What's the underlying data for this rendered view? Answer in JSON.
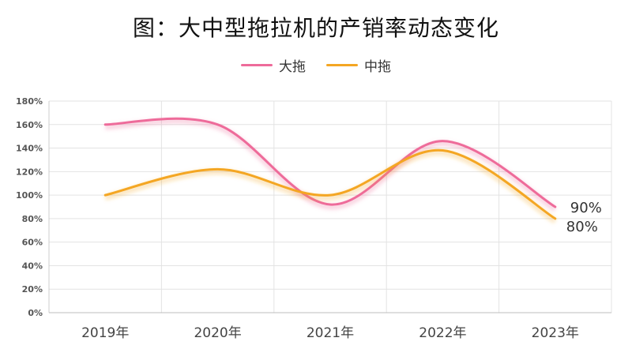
{
  "chart_data": {
    "type": "line",
    "title": "图：大中型拖拉机的产销率动态变化",
    "categories": [
      "2019年",
      "2020年",
      "2021年",
      "2022年",
      "2023年"
    ],
    "series": [
      {
        "name": "大拖",
        "color": "#ee6b9a",
        "values": [
          160,
          160,
          92,
          146,
          90
        ]
      },
      {
        "name": "中拖",
        "color": "#f4a623",
        "values": [
          100,
          122,
          100,
          138,
          80
        ]
      }
    ],
    "y_ticks": [
      "0%",
      "20%",
      "40%",
      "60%",
      "80%",
      "100%",
      "120%",
      "140%",
      "160%",
      "180%"
    ],
    "ylim": [
      0,
      180
    ],
    "end_labels": [
      "90%",
      "80%"
    ],
    "legend_position": "top-center",
    "grid": true
  }
}
